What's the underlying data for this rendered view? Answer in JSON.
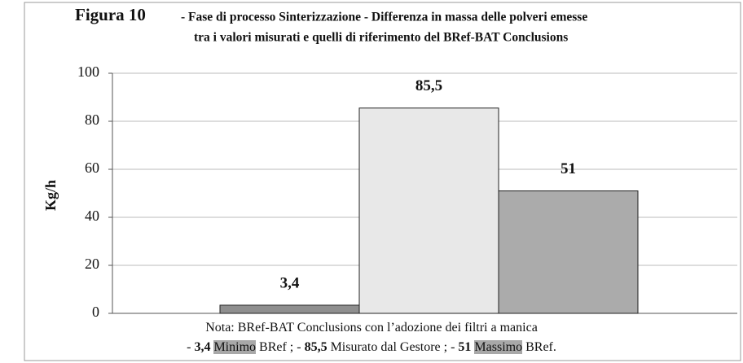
{
  "chart_data": {
    "type": "bar",
    "figure_label": "Figura 10",
    "title_lines": [
      "- Fase di processo Sinterizzazione - Differenza in massa delle polveri emesse",
      "tra i valori misurati e quelli di riferimento del BRef-BAT Conclusions"
    ],
    "y_label": "Kg/h",
    "categories": [
      null,
      null,
      null
    ],
    "values": [
      3.4,
      85.5,
      51
    ],
    "value_labels": [
      "3,4",
      "85,5",
      "51"
    ],
    "colors": [
      "#8f8f8f",
      "#e8e8e8",
      "#ababab"
    ],
    "ylim": [
      0,
      100
    ],
    "yticks": [
      0,
      20,
      40,
      60,
      80,
      100
    ],
    "grid": true,
    "note": {
      "line1": "Nota: BRef-BAT Conclusions con l’adozione dei filtri a manica",
      "line2": [
        {
          "text": "- "
        },
        {
          "text": "3,4",
          "bold": true
        },
        {
          "text": " "
        },
        {
          "text": "Minimo",
          "shade": "#a8a8a8"
        },
        {
          "text": " BRef ; - "
        },
        {
          "text": "85,5",
          "bold": true
        },
        {
          "text": " Misurato dal Gestore ; - "
        },
        {
          "text": "51",
          "bold": true
        },
        {
          "text": " "
        },
        {
          "text": "Massimo",
          "shade": "#a8a8a8"
        },
        {
          "text": " BRef."
        }
      ]
    }
  }
}
